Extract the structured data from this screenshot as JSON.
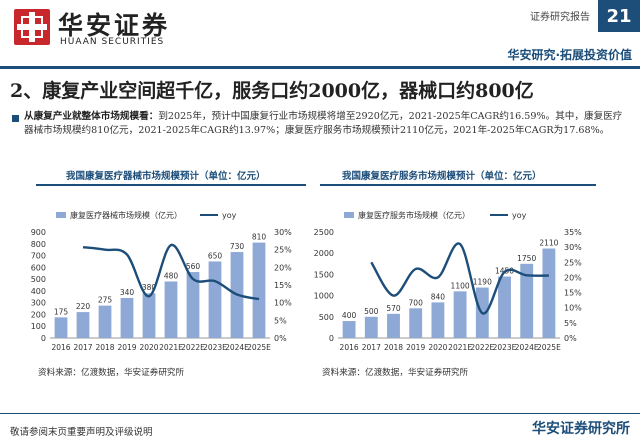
{
  "header": {
    "logo_cn": "华安证券",
    "logo_en": "HUAAN SECURITIES",
    "report_type": "证券研究报告",
    "page_number": "21",
    "slogan": "华安研究·拓展投资价值"
  },
  "title": "2、康复产业空间超千亿，服务口约2000亿，器械口约800亿",
  "summary": {
    "lead": "从康复产业就整体市场规模看：",
    "body": "到2025年，预计中国康复行业市场规模将增至2920亿元，2021-2025年CAGR约16.59%。其中，康复医疗器械市场规模约810亿元，2021-2025年CAGR约13.97%；康复医疗服务市场规模预计2110亿元，2021年-2025年CAGR为17.68%。"
  },
  "colors": {
    "bar": "#8fa9d6",
    "line": "#1d4e7a",
    "brand": "#1d4e7a",
    "logo": "#c8282c"
  },
  "chart_data": [
    {
      "type": "bar",
      "title": "我国康复医疗器械市场规模预计（单位：亿元）",
      "categories": [
        "2016",
        "2017",
        "2018",
        "2019",
        "2020",
        "2021E",
        "2022E",
        "2023E",
        "2024E",
        "2025E"
      ],
      "series": [
        {
          "name": "康复医疗器械市场规模（亿元）",
          "type": "bar",
          "axis": "left",
          "values": [
            175,
            220,
            275,
            340,
            380,
            480,
            560,
            650,
            730,
            810
          ]
        },
        {
          "name": "yoy",
          "type": "line",
          "axis": "right",
          "values": [
            null,
            25.7,
            25.0,
            23.6,
            11.8,
            26.3,
            16.7,
            16.1,
            12.3,
            11.0
          ]
        }
      ],
      "y_left": {
        "ticks": [
          0,
          100,
          200,
          300,
          400,
          500,
          600,
          700,
          800,
          900
        ],
        "ylim": [
          0,
          900
        ]
      },
      "y_right": {
        "ticks": [
          "0%",
          "5%",
          "10%",
          "15%",
          "20%",
          "25%",
          "30%"
        ],
        "ylim": [
          0,
          30
        ]
      },
      "legend": "top",
      "source": "资料来源：亿渡数据，华安证券研究所"
    },
    {
      "type": "bar",
      "title": "我国康复医疗服务市场规模预计（单位：亿元）",
      "categories": [
        "2016",
        "2017",
        "2018",
        "2019",
        "2020",
        "2021E",
        "2022E",
        "2023E",
        "2024E",
        "2025E"
      ],
      "series": [
        {
          "name": "康复医疗服务市场规模（亿元）",
          "type": "bar",
          "axis": "left",
          "values": [
            400,
            500,
            570,
            700,
            840,
            1100,
            1190,
            1450,
            1750,
            2110
          ]
        },
        {
          "name": "yoy",
          "type": "line",
          "axis": "right",
          "values": [
            null,
            25.0,
            14.0,
            22.8,
            20.0,
            31.0,
            8.2,
            21.8,
            20.7,
            20.6
          ]
        }
      ],
      "y_left": {
        "ticks": [
          0,
          500,
          1000,
          1500,
          2000,
          2500
        ],
        "ylim": [
          0,
          2500
        ]
      },
      "y_right": {
        "ticks": [
          "0%",
          "5%",
          "10%",
          "15%",
          "20%",
          "25%",
          "30%",
          "35%"
        ],
        "ylim": [
          0,
          35
        ]
      },
      "legend": "top",
      "source": "资料来源：亿渡数据，华安证券研究所"
    }
  ],
  "footer": {
    "disclaimer": "敬请参阅末页重要声明及评级说明",
    "brand": "华安证券研究所"
  }
}
